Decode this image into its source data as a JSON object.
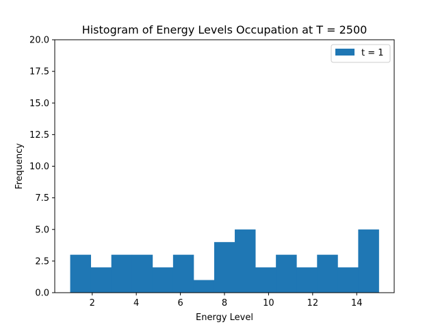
{
  "chart_data": {
    "type": "bar",
    "title": "Histogram of Energy Levels Occupation at T = 2500",
    "xlabel": "Energy Level",
    "ylabel": "Frequency",
    "xlim": [
      0.3,
      15.7
    ],
    "ylim": [
      0,
      20
    ],
    "bin_edges": [
      1,
      1.9333,
      2.8667,
      3.8,
      4.7333,
      5.6667,
      6.6,
      7.5333,
      8.4667,
      9.4,
      10.3333,
      11.2667,
      12.2,
      13.1333,
      14.0667,
      15
    ],
    "values": [
      3,
      2,
      3,
      3,
      2,
      3,
      1,
      4,
      5,
      2,
      3,
      2,
      3,
      2,
      5
    ],
    "x_ticks": [
      2,
      4,
      6,
      8,
      10,
      12,
      14
    ],
    "y_ticks": [
      "0.0",
      "2.5",
      "5.0",
      "7.5",
      "10.0",
      "12.5",
      "15.0",
      "17.5",
      "20.0"
    ],
    "grid": false,
    "legend_position": "upper right",
    "series": [
      {
        "name": "t = 1",
        "color": "#1f77b4"
      }
    ]
  }
}
